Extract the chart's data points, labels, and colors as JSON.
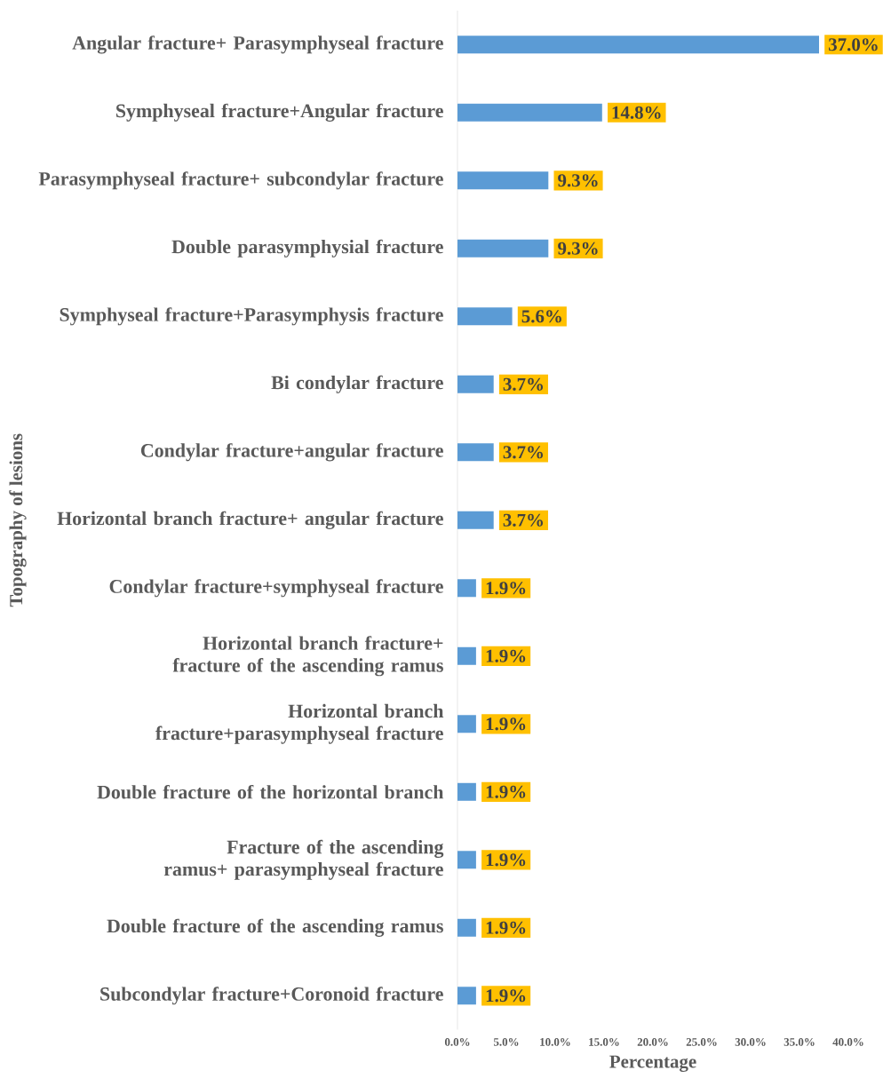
{
  "chart_data": {
    "type": "bar",
    "orientation": "horizontal",
    "xlabel": "Percentage",
    "ylabel": "Topography of lesions",
    "categories": [
      "Angular fracture+ Parasymphyseal fracture",
      "Symphyseal fracture+Angular fracture",
      "Parasymphyseal fracture+ subcondylar fracture",
      "Double parasymphysial fracture",
      "Symphyseal fracture+Parasymphysis fracture",
      "Bi condylar fracture",
      "Condylar fracture+angular fracture",
      "Horizontal branch fracture+ angular fracture",
      "Condylar fracture+symphyseal fracture",
      "Horizontal branch fracture+ fracture of the ascending ramus",
      "Horizontal branch fracture+parasymphyseal fracture",
      "Double fracture of the horizontal branch",
      "Fracture of the ascending ramus+ parasymphyseal fracture",
      "Double fracture of the ascending ramus",
      "Subcondylar fracture+Coronoid fracture"
    ],
    "values": [
      37.0,
      14.8,
      9.3,
      9.3,
      5.6,
      3.7,
      3.7,
      3.7,
      1.9,
      1.9,
      1.9,
      1.9,
      1.9,
      1.9,
      1.9
    ],
    "value_labels": [
      "37.0%",
      "14.8%",
      "9.3%",
      "9.3%",
      "5.6%",
      "3.7%",
      "3.7%",
      "3.7%",
      "1.9%",
      "1.9%",
      "1.9%",
      "1.9%",
      "1.9%",
      "1.9%",
      "1.9%"
    ],
    "color": "#5b9bd5",
    "xlim": [
      0,
      40
    ],
    "xticks": [
      {
        "value": 0,
        "label": "0.0%"
      },
      {
        "value": 5,
        "label": "5.0%"
      },
      {
        "value": 10,
        "label": "10.0%"
      },
      {
        "value": 15,
        "label": "15.0%"
      },
      {
        "value": 20,
        "label": "20.0%"
      },
      {
        "value": 25,
        "label": "25.0%"
      },
      {
        "value": 30,
        "label": "30.0%"
      },
      {
        "value": 35,
        "label": "35.0%"
      },
      {
        "value": 40,
        "label": "40.0%"
      }
    ]
  }
}
